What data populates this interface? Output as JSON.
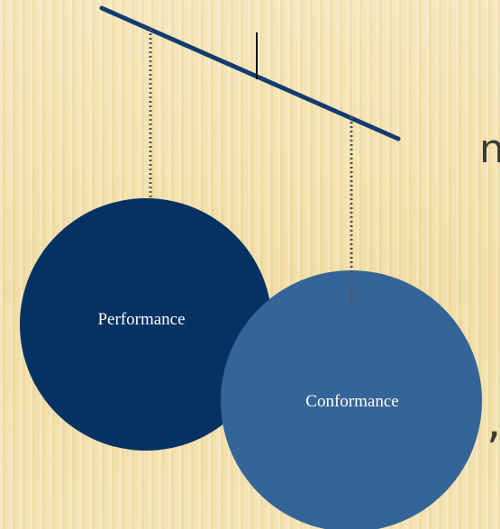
{
  "diagram": {
    "left_circle": {
      "label": "Performance",
      "color": "#053263"
    },
    "right_circle": {
      "label": "Conformance",
      "color": "#356598"
    },
    "balance_beam_color": "#123c70",
    "hanging_string_color": "#555555"
  },
  "edge_glyphs": {
    "top": "n",
    "bottom": ","
  }
}
